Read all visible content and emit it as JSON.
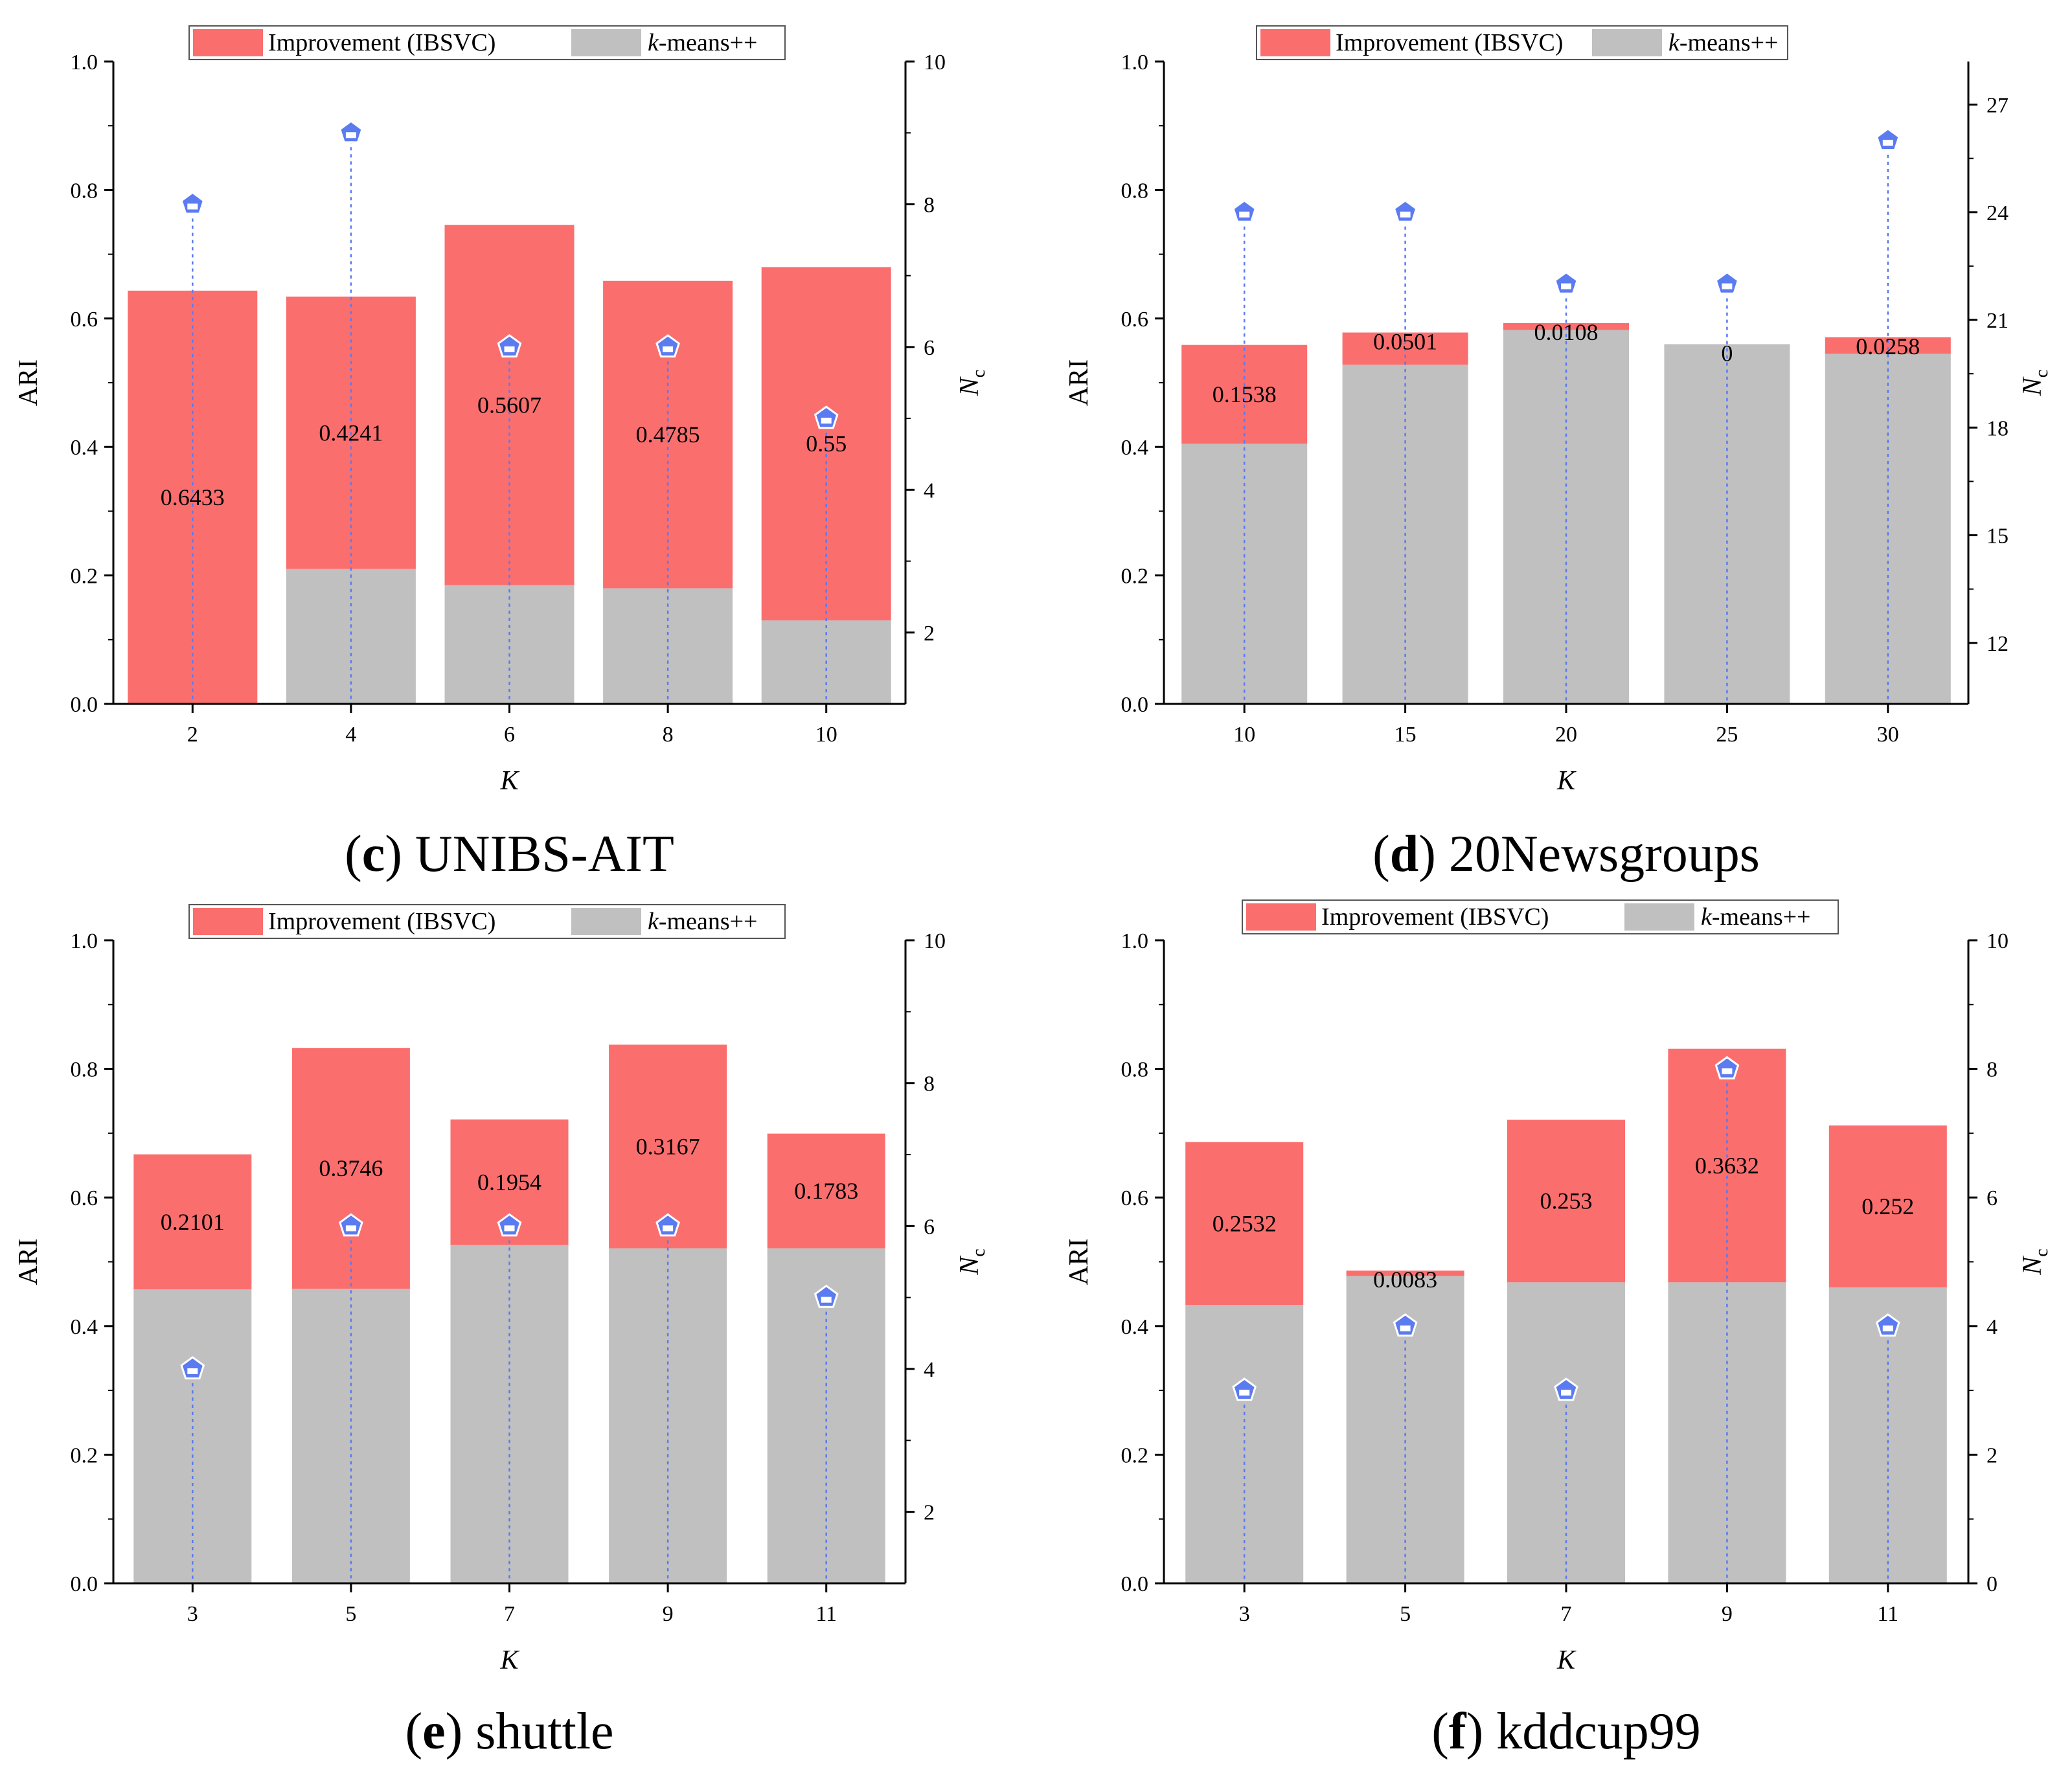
{
  "colors": {
    "improvement": "#fb6e6e",
    "kmeans": "#c0c0c0",
    "nc_marker": "#5b7bf0",
    "dashed": "#5b7bf0"
  },
  "chart_data": [
    {
      "id": "c",
      "type": "bar",
      "caption_letter": "c",
      "caption_name": "UNIBS-AIT",
      "categories": [
        "2",
        "4",
        "6",
        "8",
        "10"
      ],
      "xlabel": "K",
      "ylabel": "ARI",
      "y2label": "N",
      "y2label_sub": "c",
      "ylim": [
        0.0,
        1.0
      ],
      "yticks": [
        "0.0",
        "0.2",
        "0.4",
        "0.6",
        "0.8",
        "1.0"
      ],
      "y2lim": [
        1,
        10
      ],
      "y2ticks": [
        2,
        4,
        6,
        8,
        10
      ],
      "legend": {
        "improvement_label": "Improvement (IBSVC)",
        "kmeans_italic": "k",
        "kmeans_rest": "-means++"
      },
      "series": [
        {
          "name": "k-means++",
          "values": [
            0.0,
            0.21,
            0.185,
            0.18,
            0.13
          ]
        },
        {
          "name": "Improvement (IBSVC)",
          "values": [
            0.6433,
            0.4241,
            0.5607,
            0.4785,
            0.55
          ]
        },
        {
          "name": "Nc",
          "values": [
            8,
            9,
            6,
            6,
            5
          ]
        }
      ],
      "labels": [
        "0.6433",
        "0.4241",
        "0.5607",
        "0.4785",
        "0.55"
      ]
    },
    {
      "id": "d",
      "type": "bar",
      "caption_letter": "d",
      "caption_name": "20Newsgroups",
      "categories": [
        "10",
        "15",
        "20",
        "25",
        "30"
      ],
      "xlabel": "K",
      "ylabel": "ARI",
      "y2label": "N",
      "y2label_sub": "c",
      "ylim": [
        0.0,
        1.0
      ],
      "yticks": [
        "0.0",
        "0.2",
        "0.4",
        "0.6",
        "0.8",
        "1.0"
      ],
      "y2lim": [
        10.3,
        28.2
      ],
      "y2ticks": [
        12,
        15,
        18,
        21,
        24,
        27
      ],
      "legend": {
        "improvement_label": "Improvement (IBSVC)",
        "kmeans_italic": "k",
        "kmeans_rest": "-means++"
      },
      "series": [
        {
          "name": "k-means++",
          "values": [
            0.405,
            0.528,
            0.582,
            0.56,
            0.545
          ]
        },
        {
          "name": "Improvement (IBSVC)",
          "values": [
            0.1538,
            0.0501,
            0.0108,
            0.0,
            0.0258
          ]
        },
        {
          "name": "Nc",
          "values": [
            24,
            24,
            22,
            22,
            26
          ]
        }
      ],
      "labels": [
        "0.1538",
        "0.0501",
        "0.0108",
        "0",
        "0.0258"
      ]
    },
    {
      "id": "e",
      "type": "bar",
      "caption_letter": "e",
      "caption_name": "shuttle",
      "categories": [
        "3",
        "5",
        "7",
        "9",
        "11"
      ],
      "xlabel": "K",
      "ylabel": "ARI",
      "y2label": "N",
      "y2label_sub": "c",
      "ylim": [
        0.0,
        1.0
      ],
      "yticks": [
        "0.0",
        "0.2",
        "0.4",
        "0.6",
        "0.8",
        "1.0"
      ],
      "y2lim": [
        1,
        10
      ],
      "y2ticks": [
        2,
        4,
        6,
        8,
        10
      ],
      "legend": {
        "improvement_label": "Improvement (IBSVC)",
        "kmeans_italic": "k",
        "kmeans_rest": "-means++"
      },
      "series": [
        {
          "name": "k-means++",
          "values": [
            0.457,
            0.458,
            0.526,
            0.521,
            0.521
          ]
        },
        {
          "name": "Improvement (IBSVC)",
          "values": [
            0.2101,
            0.3746,
            0.1954,
            0.3167,
            0.1783
          ]
        },
        {
          "name": "Nc",
          "values": [
            4,
            6,
            6,
            6,
            5
          ]
        }
      ],
      "labels": [
        "0.2101",
        "0.3746",
        "0.1954",
        "0.3167",
        "0.1783"
      ]
    },
    {
      "id": "f",
      "type": "bar",
      "caption_letter": "f",
      "caption_name": "kddcup99",
      "categories": [
        "3",
        "5",
        "7",
        "9",
        "11"
      ],
      "xlabel": "K",
      "ylabel": "ARI",
      "y2label": "N",
      "y2label_sub": "c",
      "ylim": [
        0.0,
        1.0
      ],
      "yticks": [
        "0.0",
        "0.2",
        "0.4",
        "0.6",
        "0.8",
        "1.0"
      ],
      "y2lim": [
        0,
        10
      ],
      "y2ticks": [
        0,
        2,
        4,
        6,
        8,
        10
      ],
      "legend": {
        "improvement_label": "Improvement (IBSVC)",
        "kmeans_italic": "k",
        "kmeans_rest": "-means++"
      },
      "series": [
        {
          "name": "k-means++",
          "values": [
            0.433,
            0.478,
            0.468,
            0.468,
            0.46
          ]
        },
        {
          "name": "Improvement (IBSVC)",
          "values": [
            0.2532,
            0.0083,
            0.253,
            0.3632,
            0.252
          ]
        },
        {
          "name": "Nc",
          "values": [
            3,
            4,
            3,
            8,
            4
          ]
        }
      ],
      "labels": [
        "0.2532",
        "0.0083",
        "0.253",
        "0.3632",
        "0.252"
      ]
    }
  ]
}
